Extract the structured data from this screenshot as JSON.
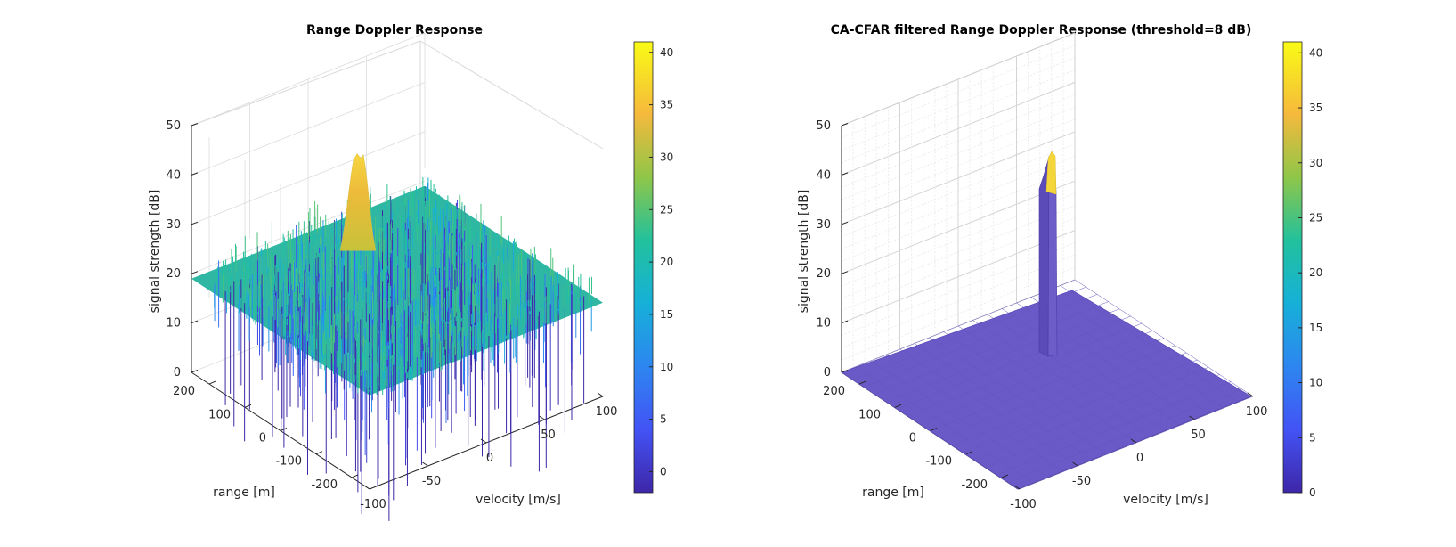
{
  "chart_data": [
    {
      "type": "surface3d",
      "title": "Range Doppler Response",
      "xlabel": "velocity [m/s]",
      "ylabel": "range [m]",
      "zlabel": "signal strength [dB]",
      "xlim": [
        -100,
        100
      ],
      "ylim": [
        -250,
        250
      ],
      "zlim": [
        0,
        50
      ],
      "xticks": [
        "-100",
        "-50",
        "0",
        "50",
        "100"
      ],
      "yticks": [
        "-200",
        "-100",
        "0",
        "100",
        "200"
      ],
      "zticks": [
        "0",
        "10",
        "20",
        "30",
        "40",
        "50"
      ],
      "noise_floor_db": 19,
      "noise_min_db": -2,
      "peak": {
        "velocity": 0,
        "range": 110,
        "signal_db": 41
      },
      "colorbar": {
        "min": -2,
        "max": 41,
        "ticks": [
          "0",
          "5",
          "10",
          "15",
          "20",
          "25",
          "30",
          "35",
          "40"
        ]
      },
      "grid": true
    },
    {
      "type": "surface3d",
      "title": "CA-CFAR filtered Range Doppler Response (threshold=8 dB)",
      "xlabel": "velocity [m/s]",
      "ylabel": "range [m]",
      "zlabel": "signal strength [dB]",
      "xlim": [
        -100,
        100
      ],
      "ylim": [
        -250,
        250
      ],
      "zlim": [
        0,
        50
      ],
      "xticks": [
        "-100",
        "-50",
        "0",
        "50",
        "100"
      ],
      "yticks": [
        "-200",
        "-100",
        "0",
        "100",
        "200"
      ],
      "zticks": [
        "0",
        "10",
        "20",
        "30",
        "40",
        "50"
      ],
      "threshold_db": 8,
      "floor_db": 0,
      "peak": {
        "velocity": 0,
        "range": 110,
        "signal_db": 41
      },
      "colorbar": {
        "min": 0,
        "max": 41,
        "ticks": [
          "0",
          "5",
          "10",
          "15",
          "20",
          "25",
          "30",
          "35",
          "40"
        ]
      },
      "grid": true,
      "minor_grid": true
    }
  ]
}
